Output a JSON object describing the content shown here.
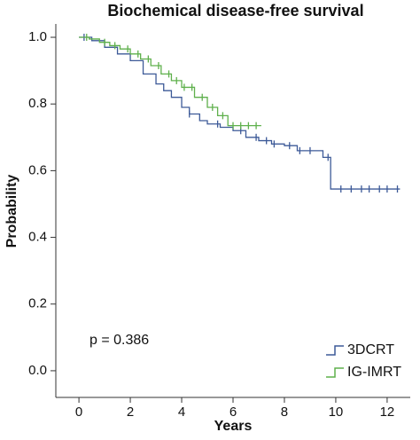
{
  "chart_data": {
    "type": "km",
    "title": "Biochemical disease-free survival",
    "xlabel": "Years",
    "ylabel": "Probability",
    "annotation": "p = 0.386",
    "xlim": [
      -0.9,
      12.9
    ],
    "ylim": [
      -0.08,
      1.04
    ],
    "xticks": [
      0,
      2,
      4,
      6,
      8,
      10,
      12
    ],
    "yticks": [
      {
        "value": 0,
        "label": "0.0"
      },
      0.2,
      0.4,
      0.6,
      0.8,
      {
        "value": 1,
        "label": "1.0"
      }
    ],
    "legend": "lower right",
    "series": [
      {
        "name": "3DCRT",
        "color": "#3d5a98",
        "x": [
          0,
          0.5,
          1,
          1.5,
          2,
          2.5,
          3,
          3.3,
          3.6,
          4,
          4.3,
          4.7,
          5,
          5.5,
          6,
          6.5,
          7,
          7.5,
          8,
          8.5,
          9.5,
          9.8,
          12.5
        ],
        "values": [
          1.0,
          0.99,
          0.97,
          0.95,
          0.93,
          0.89,
          0.86,
          0.84,
          0.82,
          0.79,
          0.77,
          0.75,
          0.74,
          0.73,
          0.72,
          0.7,
          0.69,
          0.68,
          0.675,
          0.66,
          0.64,
          0.545,
          0.545
        ],
        "censored": [
          0.2,
          4.3,
          5.4,
          6.3,
          6.9,
          7.3,
          7.6,
          8.2,
          8.6,
          9.0,
          9.7,
          10.2,
          10.6,
          11.0,
          11.3,
          11.7,
          12.0,
          12.4
        ]
      },
      {
        "name": "IG-IMRT",
        "color": "#5fb04c",
        "x": [
          0,
          0.4,
          0.8,
          1.2,
          1.6,
          2,
          2.4,
          2.8,
          3.2,
          3.6,
          4,
          4.5,
          5,
          5.4,
          5.8,
          7.1
        ],
        "values": [
          1.0,
          0.995,
          0.985,
          0.975,
          0.965,
          0.95,
          0.935,
          0.915,
          0.89,
          0.87,
          0.85,
          0.82,
          0.79,
          0.765,
          0.735,
          0.735
        ],
        "censored": [
          0.3,
          1.0,
          1.4,
          1.9,
          2.3,
          2.7,
          3.1,
          3.5,
          3.8,
          4.1,
          4.4,
          4.8,
          5.2,
          5.6,
          6.0,
          6.3,
          6.6,
          6.9
        ]
      }
    ]
  }
}
